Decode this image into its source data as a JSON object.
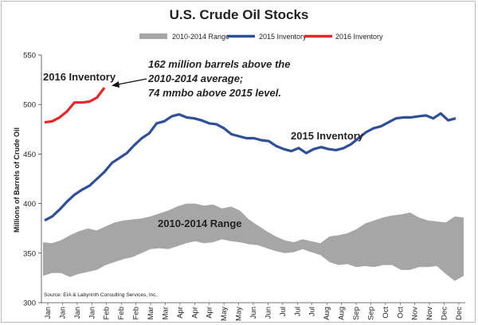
{
  "chart_data": {
    "type": "line",
    "title": "U.S. Crude Oil Stocks",
    "ylabel": "Millions of Barrels of Crude Oil",
    "xlabel": "",
    "ylim": [
      300,
      550
    ],
    "yticks": [
      300,
      350,
      400,
      450,
      500,
      550
    ],
    "x_tick_labels": [
      "Jan",
      "Jan",
      "Jan",
      "Jan",
      "Feb",
      "Feb",
      "Feb",
      "Mar",
      "Mar",
      "Apr",
      "Apr",
      "Apr",
      "May",
      "May",
      "Jun",
      "Jun",
      "Jul",
      "Jul",
      "Jul",
      "Aug",
      "Aug",
      "Sep",
      "Sep",
      "Oct",
      "Oct",
      "Nov",
      "Nov",
      "Dec",
      "Dec"
    ],
    "grid": false,
    "legend": {
      "position": "top",
      "entries": [
        "2010-2014 Range",
        "2015 Inventory",
        "2016 Inventory"
      ]
    },
    "colors": {
      "range": "#a6a6a6",
      "inv2015": "#2f4f99",
      "inv2016": "#e8262a"
    },
    "range_band": {
      "name": "2010-2014 Range",
      "upper": [
        361,
        360,
        363,
        368,
        372,
        375,
        373,
        377,
        381,
        383,
        384,
        385,
        387,
        390,
        393,
        397,
        400,
        400,
        398,
        399,
        395,
        397,
        393,
        384,
        378,
        372,
        367,
        363,
        361,
        364,
        362,
        360,
        367,
        368,
        370,
        374,
        380,
        383,
        386,
        388,
        389,
        391,
        386,
        383,
        382,
        381,
        387,
        386
      ],
      "lower": [
        327,
        330,
        330,
        326,
        329,
        331,
        333,
        338,
        341,
        344,
        346,
        350,
        354,
        355,
        354,
        357,
        360,
        362,
        360,
        361,
        364,
        362,
        361,
        359,
        358,
        355,
        352,
        350,
        351,
        354,
        351,
        348,
        341,
        338,
        339,
        336,
        337,
        336,
        338,
        338,
        333,
        333,
        336,
        336,
        337,
        329,
        322,
        327
      ]
    },
    "series": [
      {
        "name": "2015 Inventory",
        "values": [
          383,
          387,
          394,
          402,
          409,
          414,
          418,
          425,
          432,
          441,
          446,
          451,
          459,
          466,
          471,
          481,
          483,
          488,
          490,
          487,
          486,
          484,
          481,
          480,
          476,
          470,
          468,
          466,
          466,
          464,
          463,
          458,
          455,
          453,
          456,
          451,
          455,
          457,
          455,
          454,
          456,
          460,
          466,
          472,
          476,
          478,
          482,
          486,
          487,
          487,
          488,
          489,
          486,
          491,
          484,
          486
        ]
      },
      {
        "name": "2016 Inventory",
        "values": [
          482,
          483,
          487,
          493,
          502,
          502,
          503,
          507,
          517
        ]
      }
    ]
  },
  "annotations": {
    "label_2016": "2016 Inventory",
    "label_2015": "2015 Inventory",
    "range_label": "2010-2014 Range",
    "callout_line1": "162 million barrels above the",
    "callout_line2": "2010-2014 average;",
    "callout_line3": "74 mmbo above 2015 level."
  },
  "source": "Source:  EIA & Labyrinth Consulting Services, Inc."
}
